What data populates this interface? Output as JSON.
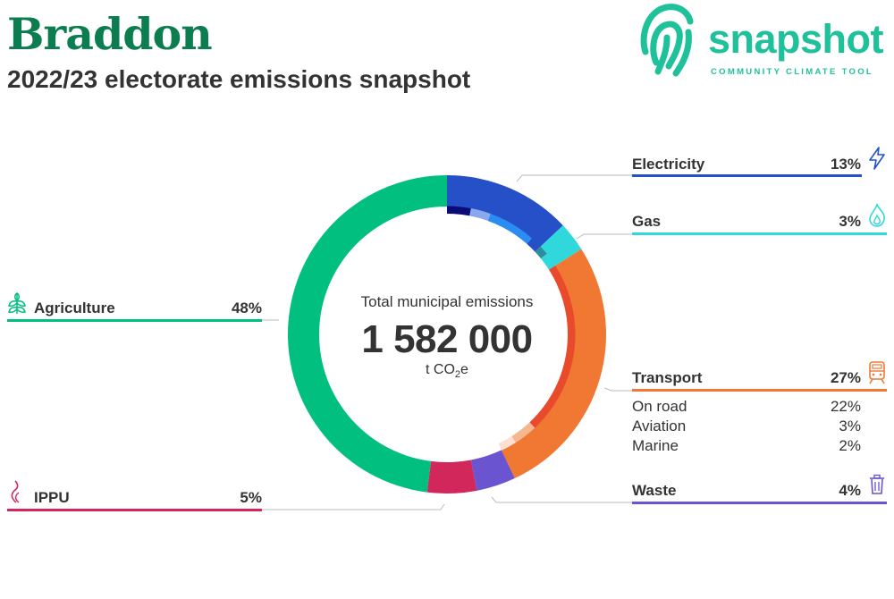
{
  "header": {
    "title": "Braddon",
    "subtitle": "2022/23 electorate emissions snapshot"
  },
  "logo": {
    "word": "snapshot",
    "tagline": "COMMUNITY CLIMATE TOOL",
    "icon": "fingerprint-logo-icon",
    "color": "#1fc19a"
  },
  "center": {
    "label": "Total municipal emissions",
    "value": "1 582 000",
    "unit_prefix": "t CO",
    "unit_sub": "2",
    "unit_suffix": "e"
  },
  "categories": {
    "electricity": {
      "label": "Electricity",
      "pct": "13%",
      "icon": "lightning-bolt-icon",
      "color": "#2550c8"
    },
    "gas": {
      "label": "Gas",
      "pct": "3%",
      "icon": "flame-icon",
      "color": "#30d8dc"
    },
    "transport": {
      "label": "Transport",
      "pct": "27%",
      "icon": "train-icon",
      "color": "#f07832",
      "breakdown": [
        {
          "label": "On road",
          "pct": "22%"
        },
        {
          "label": "Aviation",
          "pct": "3%"
        },
        {
          "label": "Marine",
          "pct": "2%"
        }
      ]
    },
    "waste": {
      "label": "Waste",
      "pct": "4%",
      "icon": "trash-bin-icon",
      "color": "#6a54d0"
    },
    "agriculture": {
      "label": "Agriculture",
      "pct": "48%",
      "icon": "wheat-icon",
      "color": "#00bf7f"
    },
    "ippu": {
      "label": "IPPU",
      "pct": "5%",
      "icon": "smoke-plume-icon",
      "color": "#d2275a"
    }
  },
  "chart_data": {
    "type": "donut",
    "total": 1582000,
    "unit": "t CO2e",
    "series": [
      {
        "name": "Electricity",
        "value": 13,
        "color": "#2550c8",
        "sub": [
          {
            "value": 3.0,
            "color": "#0a0a78"
          },
          {
            "value": 2.5,
            "color": "#8aa8ee"
          },
          {
            "value": 6.0,
            "color": "#2b8cf2"
          },
          {
            "value": 1.5,
            "color": "#2550c8"
          }
        ]
      },
      {
        "name": "Gas",
        "value": 3,
        "color": "#30d8dc",
        "sub": [
          {
            "value": 1.2,
            "color": "#2b8e9a"
          },
          {
            "value": 1.8,
            "color": "#30d8dc"
          }
        ]
      },
      {
        "name": "Transport",
        "value": 27,
        "color": "#f07832",
        "sub": [
          {
            "value": 22,
            "color": "#ea4a2c"
          },
          {
            "value": 3,
            "color": "#f6b690"
          },
          {
            "value": 2,
            "color": "#fde0d2"
          }
        ]
      },
      {
        "name": "Waste",
        "value": 4,
        "color": "#6a54d0"
      },
      {
        "name": "IPPU",
        "value": 5,
        "color": "#d2275a"
      },
      {
        "name": "Agriculture",
        "value": 48,
        "color": "#00bf7f"
      }
    ]
  }
}
